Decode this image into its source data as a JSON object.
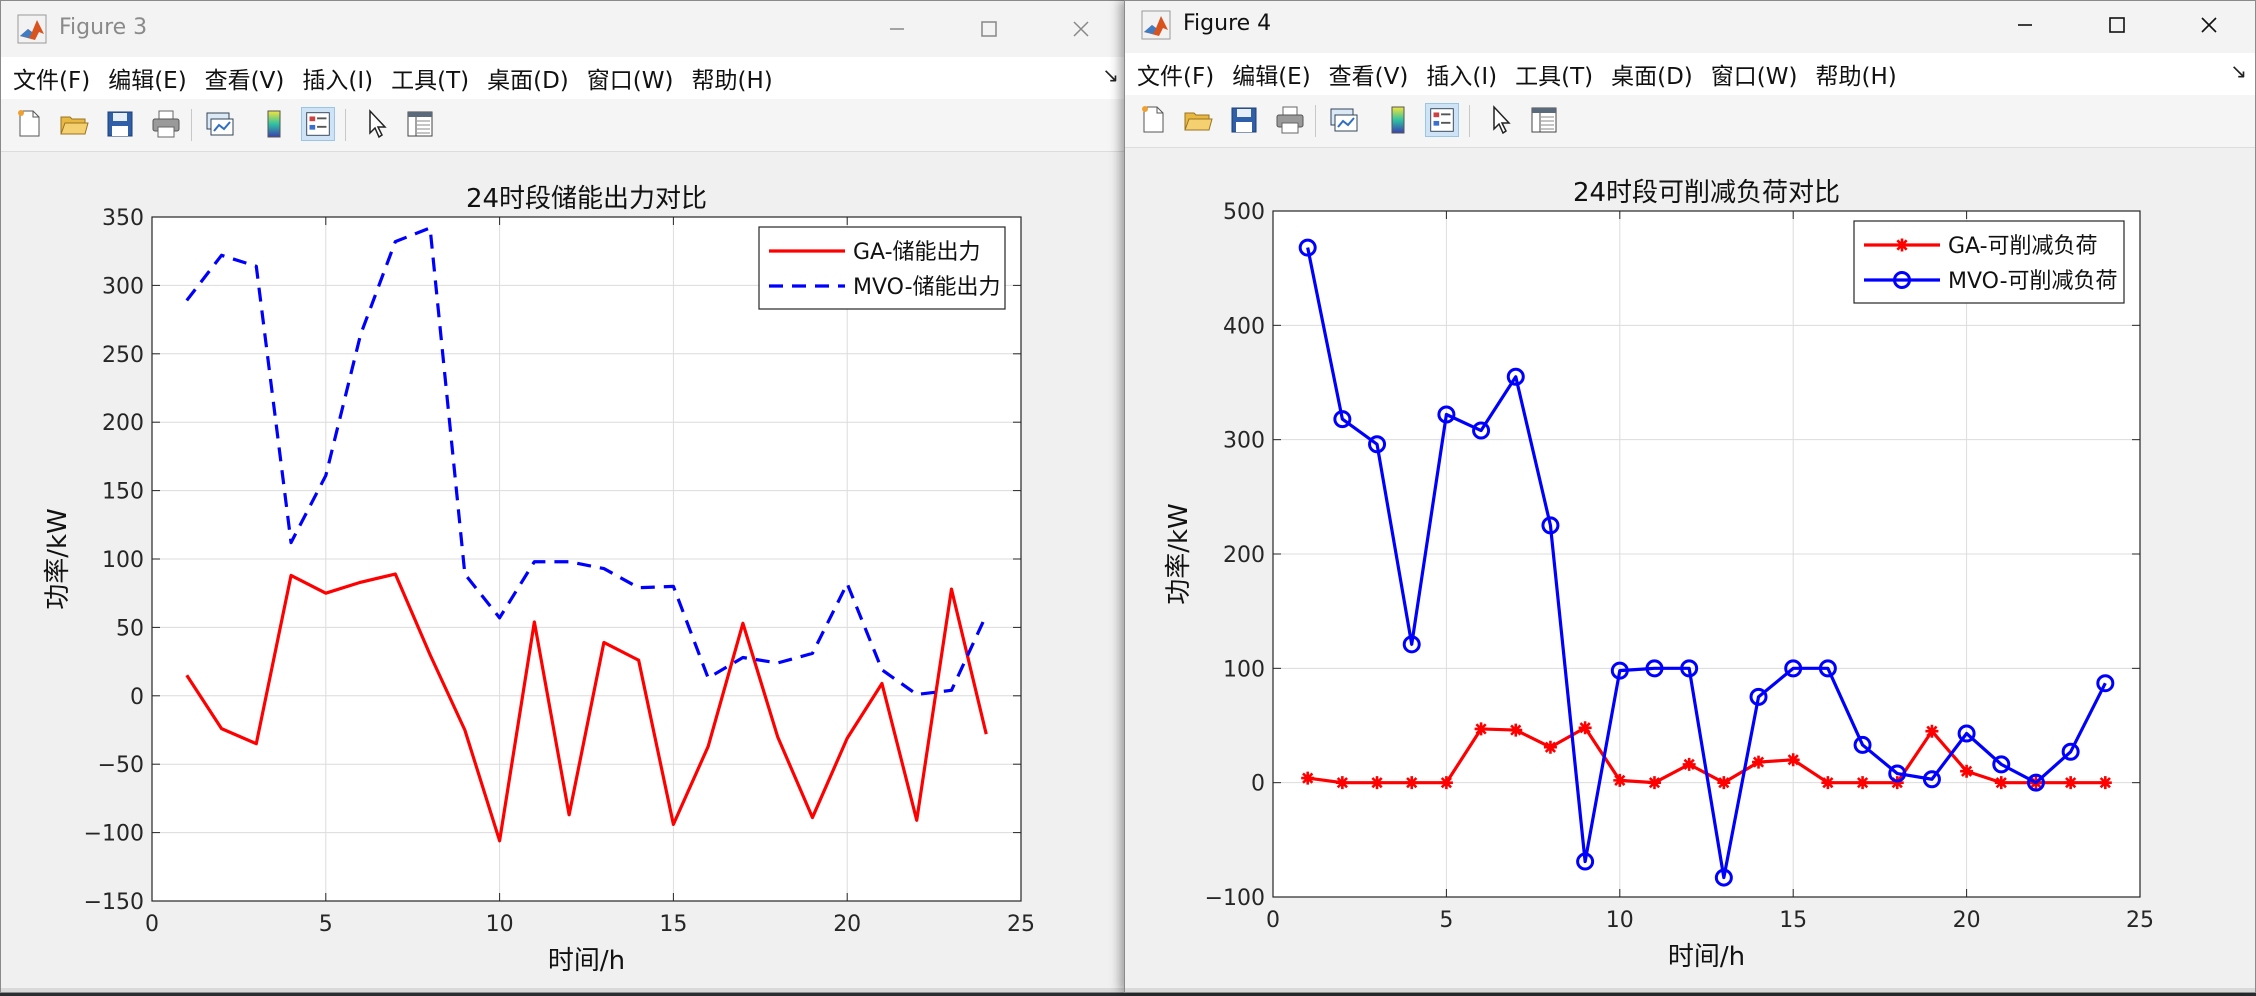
{
  "menu_items": [
    "文件(F)",
    "编辑(E)",
    "查看(V)",
    "插入(I)",
    "工具(T)",
    "桌面(D)",
    "窗口(W)",
    "帮助(H)"
  ],
  "menu_overflow": "↘",
  "colors": {
    "ga": "#ff0000",
    "mvo": "#0000ff",
    "grid": "#dcdcdc",
    "axis": "#262626"
  },
  "toolbar_icons": [
    "new-file-icon",
    "open-file-icon",
    "save-icon",
    "print-icon",
    "link-plot-icon",
    "insert-colorbar-icon",
    "insert-legend-icon",
    "edit-plot-pointer-icon",
    "property-inspector-icon"
  ],
  "windows": [
    {
      "title": "Figure 3"
    },
    {
      "title": "Figure 4"
    }
  ],
  "chart_data": [
    {
      "type": "line",
      "title": "24时段储能出力对比",
      "xlabel": "时间/h",
      "ylabel": "功率/kW",
      "xlim": [
        0,
        25
      ],
      "ylim": [
        -150,
        350
      ],
      "xticks": [
        0,
        5,
        10,
        15,
        20,
        25
      ],
      "yticks": [
        -150,
        -100,
        -50,
        0,
        50,
        100,
        150,
        200,
        250,
        300,
        350
      ],
      "grid": true,
      "legend_position": "top-right",
      "x": [
        1,
        2,
        3,
        4,
        5,
        6,
        7,
        8,
        9,
        10,
        11,
        12,
        13,
        14,
        15,
        16,
        17,
        18,
        19,
        20,
        21,
        22,
        23,
        24
      ],
      "series": [
        {
          "name": "GA-储能出力",
          "style": "solid",
          "marker": "none",
          "values": [
            15,
            -24,
            -35,
            88,
            75,
            83,
            89,
            30,
            -25,
            -106,
            54,
            -87,
            39,
            26,
            -94,
            -37,
            53,
            -30,
            -89,
            -31,
            9,
            -91,
            78,
            -28
          ]
        },
        {
          "name": "MVO-储能出力",
          "style": "dashed",
          "marker": "none",
          "values": [
            289,
            322,
            314,
            112,
            161,
            264,
            332,
            342,
            89,
            57,
            98,
            98,
            93,
            79,
            80,
            13,
            28,
            24,
            31,
            82,
            19,
            1,
            4,
            59
          ]
        }
      ]
    },
    {
      "type": "line",
      "title": "24时段可削减负荷对比",
      "xlabel": "时间/h",
      "ylabel": "功率/kW",
      "xlim": [
        0,
        25
      ],
      "ylim": [
        -100,
        500
      ],
      "xticks": [
        0,
        5,
        10,
        15,
        20,
        25
      ],
      "yticks": [
        -100,
        0,
        100,
        200,
        300,
        400,
        500
      ],
      "grid": true,
      "legend_position": "top-right",
      "x": [
        1,
        2,
        3,
        4,
        5,
        6,
        7,
        8,
        9,
        10,
        11,
        12,
        13,
        14,
        15,
        16,
        17,
        18,
        19,
        20,
        21,
        22,
        23,
        24
      ],
      "series": [
        {
          "name": "GA-可削减负荷",
          "style": "solid",
          "marker": "asterisk",
          "values": [
            4,
            0,
            0,
            0,
            0,
            47,
            46,
            31,
            48,
            2,
            0,
            16,
            0,
            18,
            20,
            0,
            0,
            0,
            45,
            10,
            0,
            0,
            0,
            0
          ]
        },
        {
          "name": "MVO-可削减负荷",
          "style": "solid",
          "marker": "circle",
          "values": [
            468,
            318,
            296,
            121,
            322,
            308,
            355,
            225,
            -69,
            98,
            100,
            100,
            -83,
            75,
            100,
            100,
            33,
            8,
            3,
            43,
            16,
            0,
            27,
            87
          ]
        }
      ]
    }
  ]
}
